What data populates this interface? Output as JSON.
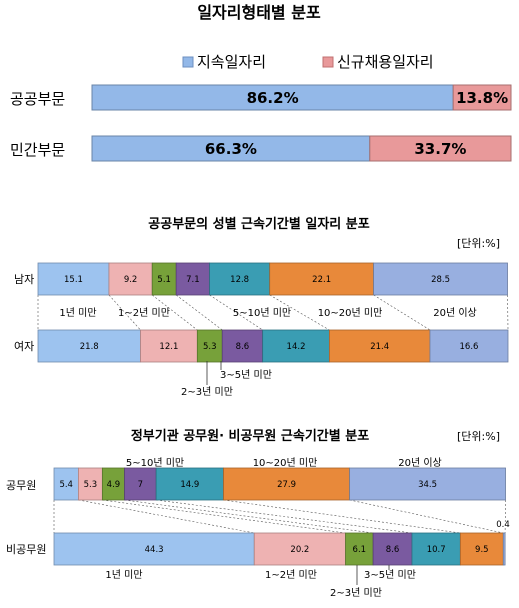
{
  "chart_data": [
    {
      "type": "bar",
      "orientation": "horizontal",
      "stacked": "percent",
      "title": "일자리형태별 분포",
      "categories": [
        "공공부문",
        "민간부문"
      ],
      "series": [
        {
          "name": "지속일자리",
          "values": [
            86.2,
            66.3
          ],
          "labels": [
            "86.2%",
            "66.3%"
          ]
        },
        {
          "name": "신규채용일자리",
          "values": [
            13.8,
            33.7
          ],
          "labels": [
            "13.8%",
            "33.7%"
          ]
        }
      ],
      "legend_position": "top",
      "colors": {
        "지속일자리": "#93b8e8",
        "신규채용일자리": "#e8999a"
      },
      "xlim": [
        0,
        100
      ]
    },
    {
      "type": "bar",
      "orientation": "horizontal",
      "stacked": "percent",
      "title": "공공부문의 성별 근속기간별 일자리 분포",
      "unit": "[단위:%]",
      "categories": [
        "남자",
        "여자"
      ],
      "segment_labels": [
        "1년 미만",
        "1~2년 미만",
        "2~3년 미만",
        "3~5년 미만",
        "5~10년 미만",
        "10~20년 미만",
        "20년 이상"
      ],
      "series": [
        {
          "values": [
            15.1,
            21.8
          ]
        },
        {
          "values": [
            9.2,
            12.1
          ]
        },
        {
          "values": [
            5.1,
            5.3
          ]
        },
        {
          "values": [
            7.1,
            8.6
          ]
        },
        {
          "values": [
            12.8,
            14.2
          ]
        },
        {
          "values": [
            22.1,
            21.4
          ]
        },
        {
          "values": [
            28.5,
            16.6
          ]
        }
      ],
      "colors": [
        "#9dc3ef",
        "#eeb2b2",
        "#77a13a",
        "#7a5aa0",
        "#3a9db3",
        "#e8893a",
        "#98afe0"
      ],
      "xlim": [
        0,
        100
      ]
    },
    {
      "type": "bar",
      "orientation": "horizontal",
      "stacked": "percent",
      "title": "정부기관 공무원· 비공무원 근속기간별 분포",
      "unit": "[단위:%]",
      "categories": [
        "공무원",
        "비공무원"
      ],
      "segment_labels": [
        "1년 미만",
        "1~2년 미만",
        "2~3년 미만",
        "3~5년 미만",
        "5~10년 미만",
        "10~20년 미만",
        "20년 이상"
      ],
      "series": [
        {
          "values": [
            5.4,
            44.3
          ]
        },
        {
          "values": [
            5.3,
            20.2
          ]
        },
        {
          "values": [
            4.9,
            6.1
          ]
        },
        {
          "values": [
            7.0,
            8.6
          ]
        },
        {
          "values": [
            14.9,
            10.7
          ]
        },
        {
          "values": [
            27.9,
            9.5
          ]
        },
        {
          "values": [
            34.5,
            0.4
          ]
        }
      ],
      "colors": [
        "#9dc3ef",
        "#eeb2b2",
        "#77a13a",
        "#7a5aa0",
        "#3a9db3",
        "#e8893a",
        "#98afe0"
      ],
      "xlim": [
        0,
        100
      ]
    }
  ]
}
